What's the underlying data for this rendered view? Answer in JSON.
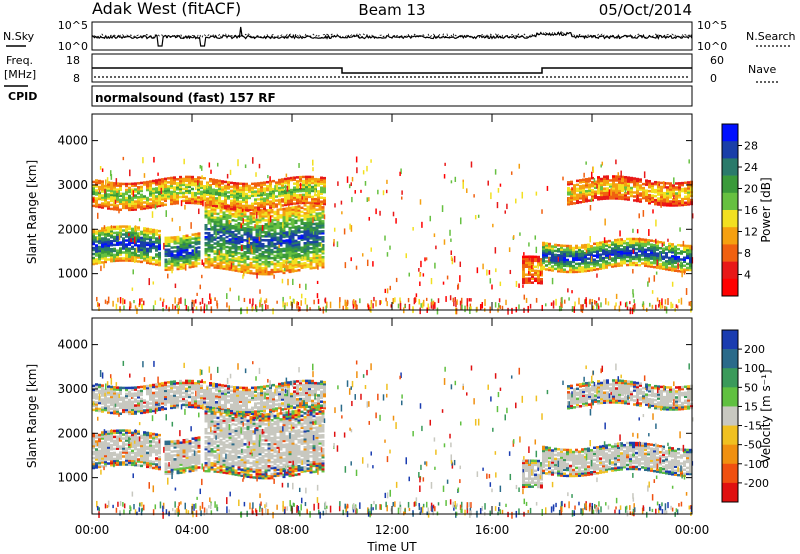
{
  "header": {
    "station": "Adak West (fitACF)",
    "beam": "Beam 13",
    "date": "05/Oct/2014"
  },
  "strips": {
    "nsky_label": "N.Sky",
    "nsearch_label": "N.Search",
    "nsky_ticks": [
      "10^5",
      "10^0"
    ],
    "nsearch_ticks": [
      "10^5",
      "10^0"
    ],
    "freq_label": "Freq.",
    "freq_unit": "[MHz]",
    "freq_ticks": [
      "18",
      "8"
    ],
    "nave_label": "Nave",
    "nave_ticks": [
      "60",
      "0"
    ],
    "cpid_label": "CPID",
    "cpid_value": "normalsound (fast) 157 RF"
  },
  "power_panel": {
    "ylabel": "Slant Range [km]",
    "yticks": [
      "4000",
      "3000",
      "2000",
      "1000"
    ],
    "colorbar_label": "Power [dB]",
    "colorbar_ticks": [
      "28",
      "24",
      "20",
      "16",
      "12",
      "8",
      "4"
    ],
    "colorbar_colors": [
      "#0010ff",
      "#1a3fa8",
      "#2a7a6a",
      "#3a9a3a",
      "#66c040",
      "#f2e020",
      "#f5a010",
      "#f06010",
      "#e81818",
      "#ff0000"
    ]
  },
  "velocity_panel": {
    "ylabel": "Slant Range [km]",
    "yticks": [
      "4000",
      "3000",
      "2000",
      "1000"
    ],
    "colorbar_label": "Velocity [m s⁻¹]",
    "colorbar_ticks": [
      "200",
      "100",
      "50",
      "15",
      "-15",
      "-50",
      "-100",
      "-200"
    ],
    "colorbar_colors": [
      "#1a3cb0",
      "#2a6a8a",
      "#3a9a5a",
      "#60c040",
      "#c8c8c0",
      "#f0c020",
      "#f09010",
      "#f05010",
      "#e01010"
    ]
  },
  "x_axis": {
    "label": "Time UT",
    "ticks": [
      "00:00",
      "04:00",
      "08:00",
      "12:00",
      "16:00",
      "20:00",
      "00:00"
    ]
  },
  "chart_data": {
    "type": "heatmap",
    "x_range_hours": [
      0,
      24
    ],
    "y_range_km": [
      180,
      4600
    ],
    "frequency_mhz_steps": [
      {
        "start_h": 0,
        "end_h": 10,
        "value": 13
      },
      {
        "start_h": 10,
        "end_h": 18,
        "value": 10.5
      },
      {
        "start_h": 18,
        "end_h": 24,
        "value": 13
      }
    ],
    "power_bands": [
      {
        "start_h": 0.0,
        "end_h": 2.7,
        "low_km": 1200,
        "high_km": 2000,
        "peak_db": 28
      },
      {
        "start_h": 2.9,
        "end_h": 4.3,
        "low_km": 1150,
        "high_km": 1900,
        "peak_db": 28
      },
      {
        "start_h": 4.5,
        "end_h": 9.2,
        "low_km": 1050,
        "high_km": 2500,
        "peak_db": 26
      },
      {
        "start_h": 0.0,
        "end_h": 9.3,
        "low_km": 2500,
        "high_km": 3100,
        "peak_db": 18
      },
      {
        "start_h": 17.2,
        "end_h": 18.0,
        "low_km": 700,
        "high_km": 1300,
        "peak_db": 12
      },
      {
        "start_h": 18.0,
        "end_h": 24.0,
        "low_km": 1100,
        "high_km": 1700,
        "peak_db": 28
      },
      {
        "start_h": 19.0,
        "end_h": 24.0,
        "low_km": 2600,
        "high_km": 3100,
        "peak_db": 14
      }
    ]
  }
}
